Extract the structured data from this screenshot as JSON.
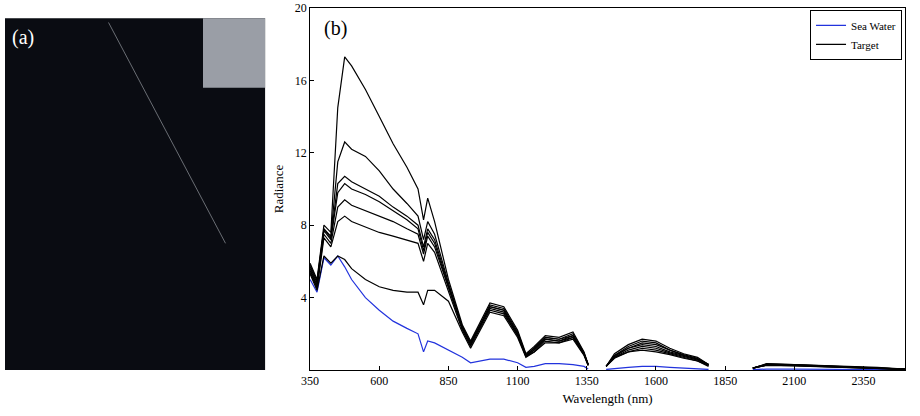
{
  "chart_data": [
    {
      "type": "image",
      "title": "(a)"
    },
    {
      "type": "line",
      "title": "(b)",
      "x_label": "Wavelength (nm)",
      "y_label": "Radiance",
      "x": [
        350,
        375,
        400,
        425,
        450,
        475,
        500,
        550,
        600,
        650,
        700,
        740,
        760,
        775,
        800,
        850,
        900,
        930,
        1000,
        1050,
        1100,
        1130,
        1160,
        1200,
        1250,
        1300,
        1340,
        1355,
        1390,
        1420,
        1450,
        1500,
        1550,
        1600,
        1650,
        1700,
        1750,
        1790,
        1870,
        1950,
        2000,
        2100,
        2200,
        2300,
        2400,
        2500
      ],
      "series": [
        {
          "name": "Sea Water",
          "color": "#2233dd",
          "values": [
            5.0,
            4.3,
            6.2,
            5.8,
            6.3,
            5.7,
            5.0,
            4.0,
            3.3,
            2.7,
            2.3,
            2.0,
            1.0,
            1.6,
            1.5,
            1.1,
            0.7,
            0.4,
            0.6,
            0.6,
            0.4,
            0.15,
            0.2,
            0.35,
            0.35,
            0.3,
            0.2,
            0.05,
            null,
            0.03,
            0.08,
            0.15,
            0.2,
            0.2,
            0.15,
            0.1,
            0.08,
            0.03,
            null,
            0.02,
            0.05,
            0.05,
            0.04,
            0.03,
            0.02,
            0.01
          ]
        },
        {
          "name": "Target",
          "color": "#000000",
          "values": [
            5.9,
            5.0,
            8.0,
            7.6,
            14.5,
            17.3,
            16.8,
            15.5,
            14.0,
            12.5,
            11.2,
            10.0,
            8.3,
            9.5,
            8.2,
            5.0,
            2.5,
            1.6,
            3.7,
            3.5,
            2.2,
            0.9,
            1.3,
            1.9,
            1.8,
            2.1,
            1.0,
            0.3,
            null,
            0.2,
            0.9,
            1.4,
            1.7,
            1.6,
            1.2,
            0.9,
            0.7,
            0.3,
            null,
            0.1,
            0.35,
            0.3,
            0.25,
            0.2,
            0.15,
            0.05
          ]
        },
        {
          "name": "Target",
          "color": "#000000",
          "values": [
            5.8,
            4.9,
            7.8,
            7.4,
            11.5,
            12.6,
            12.2,
            11.8,
            11.0,
            10.0,
            9.2,
            8.5,
            7.2,
            8.2,
            7.5,
            4.8,
            2.4,
            1.5,
            3.6,
            3.4,
            2.1,
            0.85,
            1.2,
            1.8,
            1.7,
            2.0,
            0.95,
            0.3,
            null,
            0.2,
            0.8,
            1.3,
            1.6,
            1.5,
            1.1,
            0.85,
            0.65,
            0.3,
            null,
            0.1,
            0.33,
            0.3,
            0.24,
            0.2,
            0.14,
            0.05
          ]
        },
        {
          "name": "Target",
          "color": "#000000",
          "values": [
            5.7,
            4.8,
            7.8,
            7.3,
            10.3,
            10.7,
            10.4,
            10.0,
            9.6,
            9.0,
            8.5,
            8.0,
            6.8,
            7.8,
            7.2,
            4.7,
            2.4,
            1.5,
            3.5,
            3.3,
            2.0,
            0.8,
            1.2,
            1.8,
            1.7,
            1.9,
            0.9,
            0.3,
            null,
            0.2,
            0.8,
            1.2,
            1.5,
            1.4,
            1.1,
            0.8,
            0.6,
            0.3,
            null,
            0.1,
            0.32,
            0.28,
            0.23,
            0.19,
            0.13,
            0.05
          ]
        },
        {
          "name": "Target",
          "color": "#000000",
          "values": [
            5.6,
            4.7,
            7.7,
            7.2,
            9.8,
            10.3,
            10.0,
            9.7,
            9.3,
            8.8,
            8.3,
            7.8,
            6.6,
            7.6,
            7.0,
            4.6,
            2.3,
            1.4,
            3.5,
            3.3,
            2.0,
            0.8,
            1.1,
            1.7,
            1.6,
            1.9,
            0.9,
            0.3,
            null,
            0.2,
            0.75,
            1.2,
            1.4,
            1.3,
            1.0,
            0.8,
            0.6,
            0.3,
            null,
            0.1,
            0.3,
            0.27,
            0.22,
            0.18,
            0.12,
            0.05
          ]
        },
        {
          "name": "Target",
          "color": "#000000",
          "values": [
            5.5,
            4.6,
            7.5,
            7.0,
            9.0,
            9.4,
            9.1,
            8.8,
            8.5,
            8.2,
            7.8,
            7.5,
            6.4,
            7.4,
            6.8,
            4.5,
            2.3,
            1.4,
            3.4,
            3.2,
            1.9,
            0.75,
            1.1,
            1.7,
            1.6,
            1.8,
            0.85,
            0.3,
            null,
            0.2,
            0.7,
            1.1,
            1.3,
            1.2,
            0.95,
            0.75,
            0.55,
            0.25,
            null,
            0.1,
            0.28,
            0.25,
            0.2,
            0.17,
            0.11,
            0.04
          ]
        },
        {
          "name": "Target",
          "color": "#000000",
          "values": [
            5.4,
            4.5,
            7.3,
            6.8,
            8.2,
            8.5,
            8.2,
            7.9,
            7.6,
            7.4,
            7.2,
            7.0,
            6.0,
            7.0,
            6.5,
            4.4,
            2.2,
            1.3,
            3.3,
            3.1,
            1.9,
            0.75,
            1.0,
            1.6,
            1.5,
            1.8,
            0.85,
            0.25,
            null,
            0.2,
            0.7,
            1.0,
            1.2,
            1.1,
            0.9,
            0.7,
            0.5,
            0.25,
            null,
            0.1,
            0.27,
            0.24,
            0.2,
            0.16,
            0.1,
            0.04
          ]
        },
        {
          "name": "Target",
          "color": "#000000",
          "values": [
            5.3,
            4.4,
            6.3,
            5.9,
            6.3,
            6.1,
            5.6,
            5.0,
            4.6,
            4.4,
            4.3,
            4.3,
            3.6,
            4.4,
            4.4,
            3.8,
            2.1,
            1.2,
            3.2,
            3.0,
            1.8,
            0.7,
            1.0,
            1.5,
            1.5,
            1.7,
            0.8,
            0.25,
            null,
            0.2,
            0.65,
            1.0,
            1.1,
            1.0,
            0.85,
            0.65,
            0.5,
            0.2,
            null,
            0.1,
            0.25,
            0.22,
            0.18,
            0.15,
            0.1,
            0.04
          ]
        }
      ],
      "xlim": [
        350,
        2500
      ],
      "xticks": [
        350,
        600,
        850,
        1100,
        1350,
        1600,
        1850,
        2100,
        2350
      ],
      "ylim": [
        0,
        20
      ],
      "yticks": [
        4,
        8,
        12,
        16,
        20
      ],
      "grid": false,
      "legend": "upper right"
    }
  ]
}
